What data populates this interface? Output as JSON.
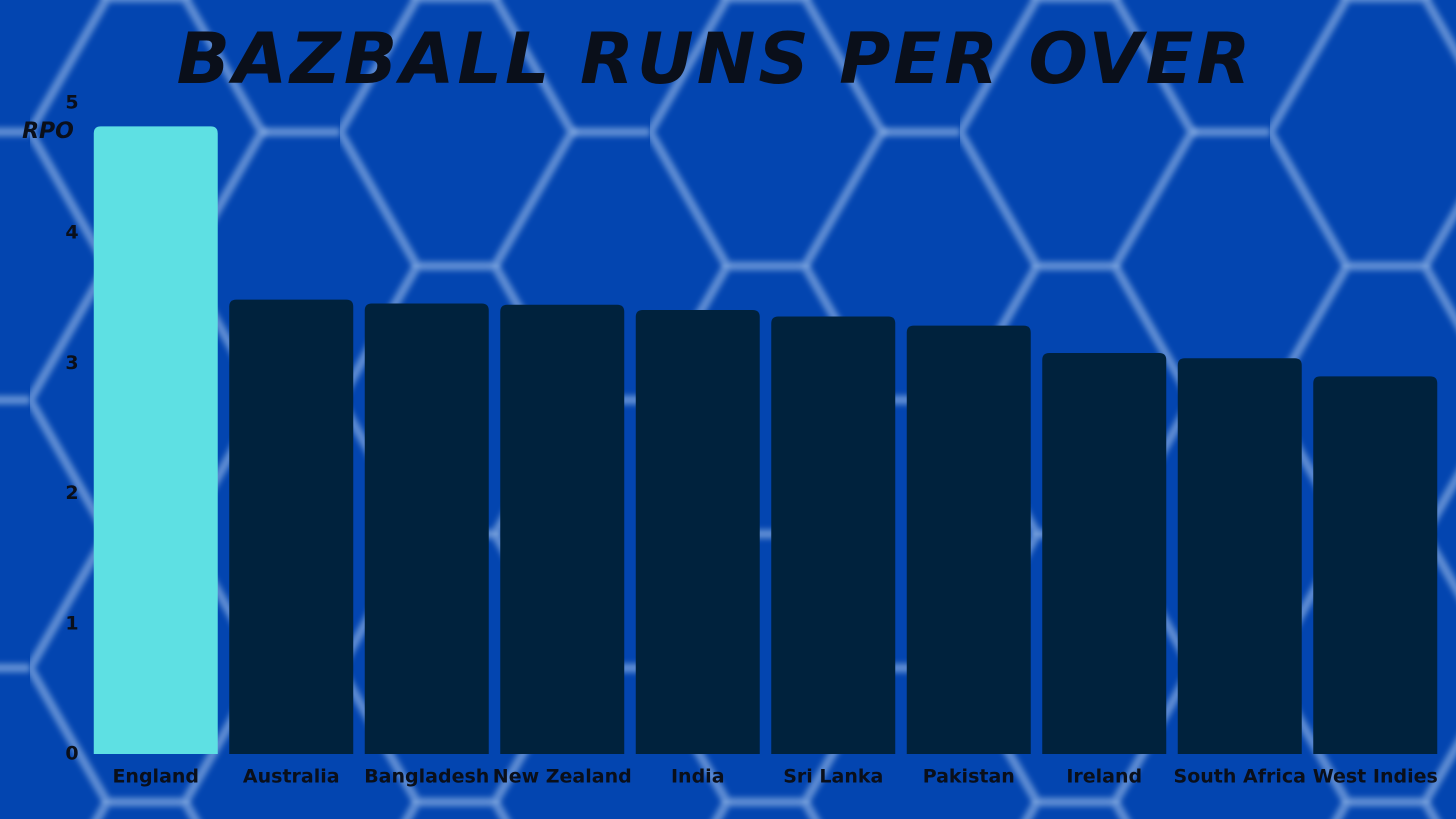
{
  "chart_data": {
    "type": "bar",
    "title": "BAZBALL RUNS PER OVER",
    "y_label": "RPO",
    "categories": [
      "England",
      "Australia",
      "Bangladesh",
      "New Zealand",
      "India",
      "Sri Lanka",
      "Pakistan",
      "Ireland",
      "South Africa",
      "West Indies"
    ],
    "values": [
      4.82,
      3.49,
      3.46,
      3.45,
      3.41,
      3.36,
      3.29,
      3.08,
      3.04,
      2.9
    ],
    "colors": [
      "#5ee0e3",
      "#00223d",
      "#00223d",
      "#00223d",
      "#00223d",
      "#00223d",
      "#00223d",
      "#00223d",
      "#00223d",
      "#00223d"
    ],
    "ylim": [
      0,
      5
    ],
    "yticks": [
      0,
      1,
      2,
      3,
      4,
      5
    ],
    "grid": false
  }
}
